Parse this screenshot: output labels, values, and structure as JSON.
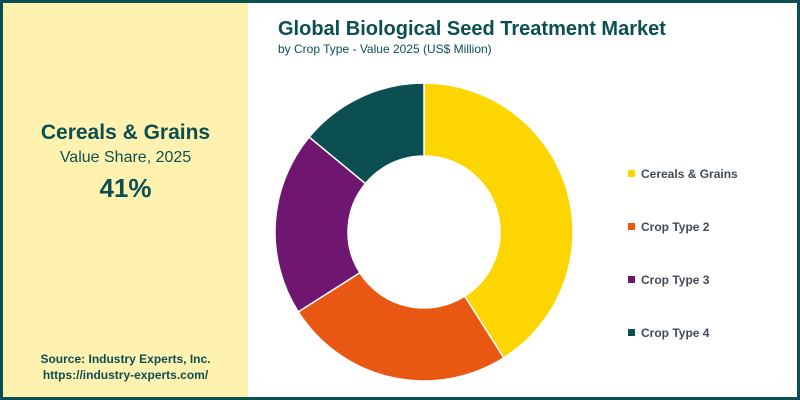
{
  "kpi": {
    "title": "Cereals & Grains",
    "subtitle": "Value Share, 2025",
    "value": "41%"
  },
  "source": {
    "line1": "Source: Industry Experts, Inc.",
    "line2": "https://industry-experts.com/"
  },
  "chart_data": {
    "type": "pie",
    "donut": true,
    "title": "Global Biological Seed Treatment Market",
    "subtitle": "by Crop Type - Value 2025 (US$ Million)",
    "categories": [
      "Cereals & Grains",
      "Crop Type 2",
      "Crop Type 3",
      "Crop Type 4"
    ],
    "values": [
      41,
      25,
      20,
      14
    ],
    "colors": [
      "#fdd500",
      "#e85812",
      "#6e1670",
      "#0b4f52"
    ],
    "legend": "right"
  }
}
